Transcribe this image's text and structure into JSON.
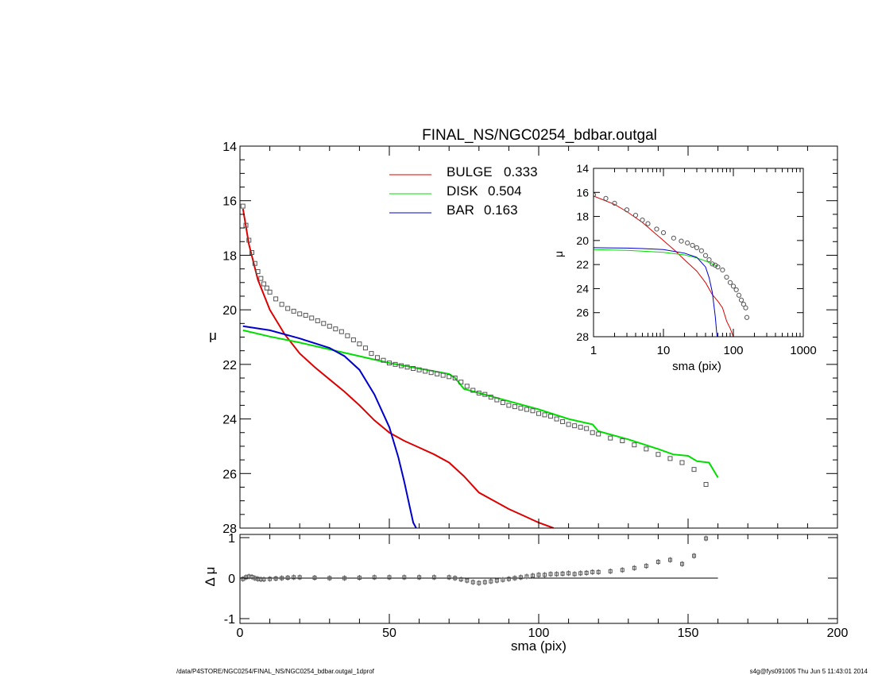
{
  "title": "FINAL_NS/NGC0254_bdbar.outgal",
  "footer": {
    "left": "/data/P4STORE/NGC0254/FINAL_NS/NGC0254_bdbar.outgal_1dprof",
    "right": "s4g@fys091005  Thu Jun  5 11:43:01 2014"
  },
  "colors": {
    "bulge": "#dd0000",
    "disk": "#00dd00",
    "bar": "#0000cc",
    "data": "#555555"
  },
  "chart_data": [
    {
      "type": "line",
      "name": "main-profile",
      "xlabel": "sma (pix)",
      "ylabel": "μ",
      "xlim": [
        0,
        200
      ],
      "ylim": [
        28,
        14
      ],
      "xticks": [
        0,
        50,
        100,
        150,
        200
      ],
      "yticks": [
        14,
        16,
        18,
        20,
        22,
        24,
        26,
        28
      ],
      "legend": [
        {
          "key": "bulge",
          "label": "BULGE",
          "value": "0.333"
        },
        {
          "key": "disk",
          "label": "DISK",
          "value": "0.504"
        },
        {
          "key": "bar",
          "label": "BAR",
          "value": "0.163"
        }
      ],
      "series": [
        {
          "key": "bulge",
          "x": [
            1,
            3,
            6,
            10,
            15,
            20,
            25,
            30,
            35,
            40,
            45,
            50,
            55,
            60,
            65,
            70,
            75,
            80,
            85,
            90,
            95,
            100,
            105
          ],
          "y": [
            16.3,
            17.6,
            18.9,
            20.0,
            20.9,
            21.6,
            22.1,
            22.55,
            23.0,
            23.5,
            24.05,
            24.5,
            24.8,
            25.05,
            25.3,
            25.6,
            26.1,
            26.7,
            27.0,
            27.3,
            27.55,
            27.8,
            28.0
          ]
        },
        {
          "key": "disk",
          "x": [
            1,
            10,
            20,
            30,
            40,
            50,
            60,
            70,
            72,
            75,
            80,
            90,
            100,
            110,
            118,
            120,
            130,
            140,
            145,
            150,
            153,
            157,
            160
          ],
          "y": [
            20.75,
            20.98,
            21.2,
            21.45,
            21.7,
            21.95,
            22.15,
            22.35,
            22.5,
            22.9,
            23.05,
            23.35,
            23.65,
            24.0,
            24.2,
            24.45,
            24.75,
            25.1,
            25.3,
            25.35,
            25.55,
            25.6,
            26.15
          ]
        },
        {
          "key": "bar",
          "x": [
            1,
            10,
            20,
            30,
            35,
            40,
            45,
            50,
            53,
            55,
            57,
            58,
            59
          ],
          "y": [
            20.6,
            20.75,
            21.05,
            21.4,
            21.7,
            22.2,
            23.1,
            24.3,
            25.4,
            26.3,
            27.3,
            27.8,
            28.0
          ]
        },
        {
          "key": "data",
          "marker": "square",
          "x": [
            1,
            2,
            3,
            4,
            5,
            6,
            7,
            8,
            9,
            10,
            12,
            14,
            16,
            18,
            20,
            22,
            24,
            26,
            28,
            30,
            32,
            34,
            36,
            38,
            40,
            42,
            44,
            46,
            48,
            50,
            52,
            54,
            56,
            58,
            60,
            62,
            64,
            66,
            68,
            70,
            72,
            74,
            76,
            78,
            80,
            82,
            84,
            86,
            88,
            90,
            92,
            94,
            96,
            98,
            100,
            102,
            104,
            106,
            108,
            110,
            112,
            114,
            116,
            118,
            120,
            124,
            128,
            132,
            136,
            140,
            144,
            148,
            152,
            156
          ],
          "y": [
            16.2,
            16.9,
            17.45,
            17.9,
            18.3,
            18.6,
            18.85,
            19.05,
            19.2,
            19.35,
            19.6,
            19.8,
            19.95,
            20.05,
            20.15,
            20.2,
            20.3,
            20.4,
            20.5,
            20.6,
            20.7,
            20.8,
            20.95,
            21.1,
            21.25,
            21.4,
            21.6,
            21.75,
            21.85,
            21.95,
            22.0,
            22.05,
            22.1,
            22.15,
            22.2,
            22.25,
            22.3,
            22.35,
            22.4,
            22.45,
            22.5,
            22.65,
            22.8,
            22.95,
            23.05,
            23.1,
            23.2,
            23.3,
            23.4,
            23.5,
            23.55,
            23.6,
            23.65,
            23.7,
            23.8,
            23.85,
            23.9,
            24.0,
            24.1,
            24.2,
            24.25,
            24.3,
            24.35,
            24.5,
            24.55,
            24.7,
            24.8,
            24.95,
            25.1,
            25.3,
            25.45,
            25.6,
            25.85,
            26.4
          ]
        }
      ]
    },
    {
      "type": "scatter",
      "name": "residual",
      "xlabel": "sma (pix)",
      "ylabel": "Δ μ",
      "xlim": [
        0,
        200
      ],
      "ylim": [
        -1,
        1
      ],
      "xticks": [
        0,
        50,
        100,
        150,
        200
      ],
      "yticks": [
        1,
        0,
        -1
      ],
      "zero_line": {
        "x": [
          0,
          160
        ],
        "y": 0
      },
      "points": {
        "x": [
          1,
          2,
          3,
          4,
          5,
          6,
          7,
          8,
          10,
          12,
          14,
          16,
          18,
          20,
          25,
          30,
          35,
          40,
          45,
          50,
          55,
          60,
          65,
          70,
          72,
          74,
          76,
          78,
          80,
          82,
          84,
          86,
          88,
          90,
          92,
          94,
          96,
          98,
          100,
          102,
          104,
          106,
          108,
          110,
          112,
          114,
          116,
          118,
          120,
          124,
          128,
          132,
          136,
          140,
          144,
          148,
          152,
          156
        ],
        "y": [
          -0.02,
          0.02,
          0.04,
          0.03,
          0.0,
          -0.02,
          -0.03,
          -0.03,
          -0.02,
          -0.01,
          0.0,
          0.01,
          0.02,
          0.02,
          0.01,
          0.0,
          0.0,
          0.01,
          0.02,
          0.02,
          0.02,
          0.02,
          0.02,
          0.02,
          0.0,
          -0.03,
          -0.06,
          -0.1,
          -0.12,
          -0.1,
          -0.08,
          -0.06,
          -0.04,
          -0.02,
          0.0,
          0.02,
          0.04,
          0.06,
          0.08,
          0.08,
          0.1,
          0.1,
          0.11,
          0.12,
          0.1,
          0.12,
          0.13,
          0.15,
          0.15,
          0.17,
          0.2,
          0.25,
          0.3,
          0.4,
          0.45,
          0.35,
          0.55,
          0.98
        ]
      }
    },
    {
      "type": "line",
      "name": "inset-profile",
      "xlabel": "sma (pix)",
      "ylabel": "μ",
      "xscale": "log",
      "xlim": [
        1,
        1000
      ],
      "ylim": [
        28,
        14
      ],
      "xticks": [
        1,
        10,
        100,
        1000
      ],
      "yticks": [
        14,
        16,
        18,
        20,
        22,
        24,
        26,
        28
      ],
      "series": [
        {
          "key": "bulge",
          "x": [
            1,
            2,
            3,
            5,
            10,
            15,
            20,
            30,
            40,
            50,
            60,
            70,
            80,
            90,
            100
          ],
          "y": [
            16.3,
            17.0,
            17.6,
            18.5,
            20.0,
            20.9,
            21.6,
            22.55,
            23.5,
            24.5,
            25.05,
            25.6,
            26.7,
            27.3,
            28.0
          ]
        },
        {
          "key": "disk",
          "x": [
            1,
            3,
            5,
            10,
            20,
            30,
            40,
            50,
            60
          ],
          "y": [
            20.75,
            20.82,
            20.88,
            20.98,
            21.2,
            21.45,
            21.7,
            21.95,
            22.15
          ]
        },
        {
          "key": "bar",
          "x": [
            1,
            3,
            5,
            10,
            20,
            30,
            40,
            45,
            50,
            55,
            58,
            59
          ],
          "y": [
            20.6,
            20.63,
            20.67,
            20.75,
            21.05,
            21.4,
            22.2,
            23.1,
            24.3,
            26.3,
            27.8,
            28.0
          ]
        },
        {
          "key": "data",
          "marker": "circle",
          "x": [
            1,
            1.5,
            2,
            3,
            4,
            5,
            6,
            8,
            10,
            14,
            18,
            22,
            26,
            30,
            35,
            40,
            45,
            50,
            55,
            60,
            70,
            80,
            90,
            100,
            110,
            120,
            130,
            140,
            150,
            156
          ],
          "y": [
            16.2,
            16.5,
            16.9,
            17.45,
            17.9,
            18.3,
            18.6,
            19.05,
            19.35,
            19.8,
            20.05,
            20.2,
            20.4,
            20.6,
            20.85,
            21.25,
            21.6,
            21.95,
            22.05,
            22.2,
            22.45,
            23.05,
            23.5,
            23.8,
            24.1,
            24.55,
            24.95,
            25.3,
            25.6,
            26.4
          ]
        }
      ]
    }
  ]
}
